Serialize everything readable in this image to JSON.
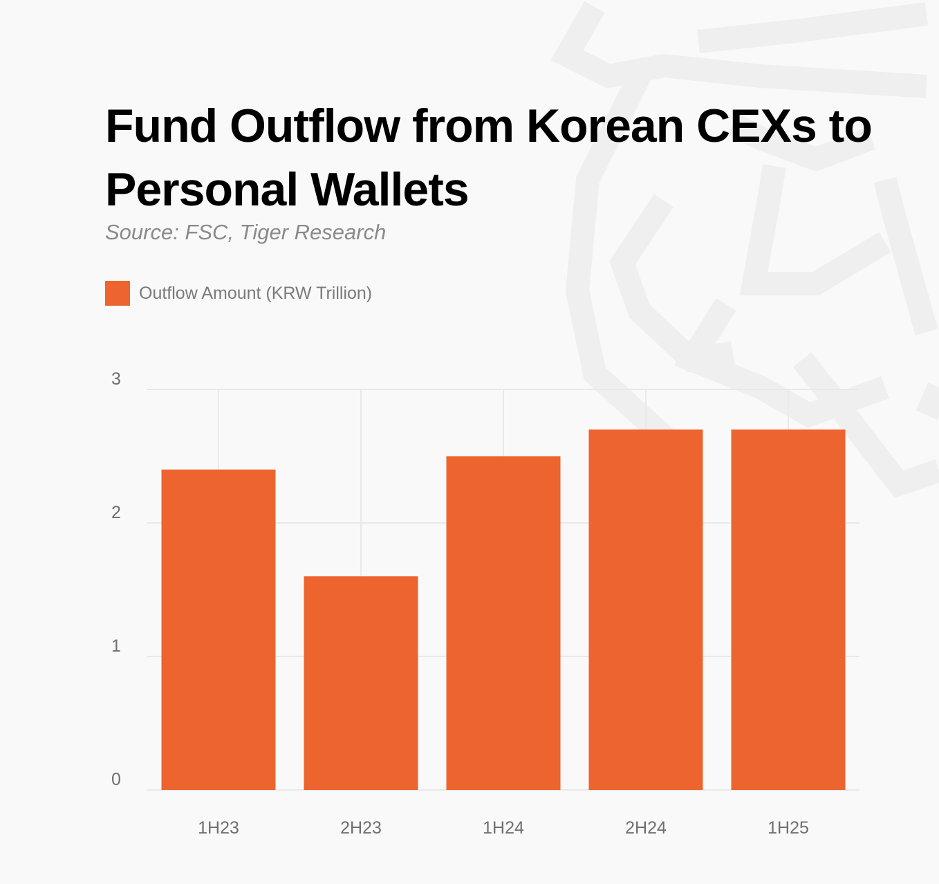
{
  "header": {
    "title": "Fund Outflow from Korean CEXs to Personal Wallets",
    "subtitle": "Source: FSC, Tiger Research"
  },
  "legend": {
    "label": "Outflow Amount (KRW Trillion)",
    "icon": "square-swatch"
  },
  "colors": {
    "bar": "#ed642e",
    "grid": "#e9e9e9",
    "background": "#f9f9f9"
  },
  "chart_data": {
    "type": "bar",
    "title": "Fund Outflow from Korean CEXs to Personal Wallets",
    "subtitle": "Source: FSC, Tiger Research",
    "categories": [
      "1H23",
      "2H23",
      "1H24",
      "2H24",
      "1H25"
    ],
    "series": [
      {
        "name": "Outflow Amount (KRW Trillion)",
        "values": [
          2.4,
          1.6,
          2.5,
          2.7,
          2.7
        ]
      }
    ],
    "yticks": [
      "0",
      "1",
      "2",
      "3"
    ],
    "ylim": [
      0,
      3
    ],
    "grid": true,
    "legend_position": "top-left"
  }
}
